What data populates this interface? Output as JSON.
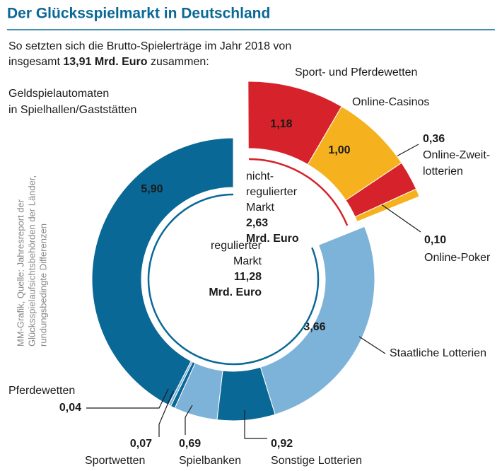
{
  "chart_data": {
    "type": "donut",
    "title": "Der Glücksspielmarkt in Deutschland",
    "subtitle_start": [
      "So setzten sich die Brutto-Spielerträge im Jahr 2018 von",
      "insgesamt"
    ],
    "total": 13.91,
    "total_label": "13,91 Mrd. Euro",
    "subtitle_end": "zusammen:",
    "source": [
      "MM-Grafik, Quelle: Jahresreport der",
      "Glücksspielaufsichtsbehörden der Länder,",
      "rundungsbedingte Differenzen"
    ],
    "series": [
      {
        "name": [
          "regulierter",
          "Markt"
        ],
        "value": 11.28,
        "value_label": "11,28",
        "unit": "Mrd. Euro",
        "color": "#0a6896",
        "categories": [
          [
            "Geldspielautomaten",
            "in Spielhallen/Gaststätten"
          ],
          [
            "Pferdewetten"
          ],
          [
            "Sportwetten"
          ],
          [
            "Spielbanken"
          ],
          [
            "Sonstige Lotterien"
          ],
          [
            "Staatliche Lotterien"
          ]
        ],
        "values": [
          5.9,
          0.04,
          0.07,
          0.69,
          0.92,
          3.66
        ],
        "value_labels": [
          "5,90",
          "0,04",
          "0,07",
          "0,69",
          "0,92",
          "3,66"
        ],
        "colors": [
          "#0a6896",
          "#7db3d8",
          "#0a6896",
          "#7db3d8",
          "#0a6896",
          "#7db3d8"
        ]
      },
      {
        "name": [
          "nicht-",
          "regulierter",
          "Markt"
        ],
        "value": 2.63,
        "value_label": "2,63",
        "unit": "Mrd. Euro",
        "color": "#d6222a",
        "categories": [
          [
            "Online-Poker"
          ],
          [
            "Online-Zweit-",
            "lotterien"
          ],
          [
            "Online-Casinos"
          ],
          [
            "Sport- und Pferdewetten"
          ]
        ],
        "values": [
          0.1,
          0.36,
          1.0,
          1.18
        ],
        "value_labels": [
          "0,10",
          "0,36",
          "1,00",
          "1,18"
        ],
        "colors": [
          "#f5b21e",
          "#d6222a",
          "#f5b21e",
          "#d6222a"
        ]
      }
    ]
  }
}
